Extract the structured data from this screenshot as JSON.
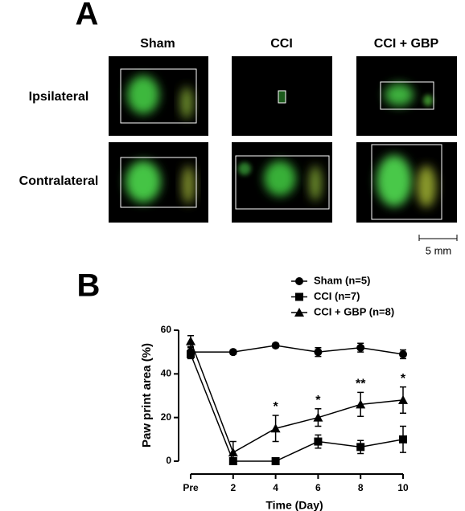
{
  "panel_a": {
    "label": "A",
    "columns": [
      "Sham",
      "CCI",
      "CCI + GBP"
    ],
    "rows": [
      "Ipsilateral",
      "Contralateral"
    ],
    "scale_bar": "5 mm"
  },
  "chart_data": {
    "type": "line",
    "panel_label": "B",
    "x_label": "Time (Day)",
    "y_label": "Paw print area (%)",
    "categories": [
      "Pre",
      "2",
      "4",
      "6",
      "8",
      "10"
    ],
    "ylim": [
      0,
      60
    ],
    "yticks": [
      0,
      20,
      40,
      60
    ],
    "series": [
      {
        "name": "Sham (n=5)",
        "color": "#000000",
        "marker": "circle",
        "values": [
          50,
          50,
          53,
          50,
          52,
          49
        ],
        "errors": [
          2,
          1,
          1,
          2,
          2,
          2
        ]
      },
      {
        "name": "CCI (n=7)",
        "color": "#000000",
        "marker": "square",
        "values": [
          49,
          0,
          0,
          9,
          6.5,
          10
        ],
        "errors": [
          2,
          0,
          0,
          3,
          3,
          6
        ]
      },
      {
        "name": "CCI + GBP (n=8)",
        "color": "#000000",
        "marker": "triangle",
        "values": [
          55,
          4,
          15,
          20,
          26,
          28
        ],
        "errors": [
          2.5,
          5,
          6,
          4,
          5.5,
          6
        ]
      }
    ],
    "annotations": [
      null,
      null,
      "*",
      "*",
      "**",
      "*"
    ]
  }
}
